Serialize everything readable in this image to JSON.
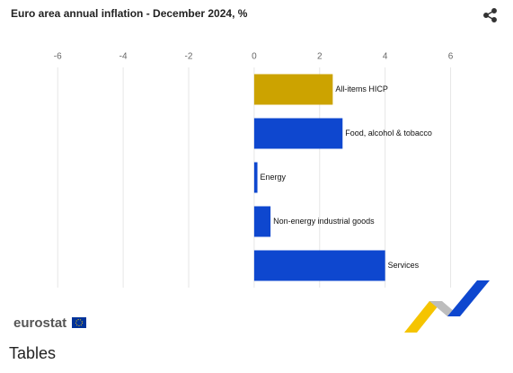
{
  "chart_data": {
    "type": "hbar",
    "title": "Euro area annual inflation - December 2024, %",
    "categories": [
      "All-items HICP",
      "Food, alcohol & tobacco",
      "Energy",
      "Non-energy industrial goods",
      "Services"
    ],
    "values": [
      2.4,
      2.7,
      0.1,
      0.5,
      4.0
    ],
    "colors": [
      "#cca300",
      "#0e47cf",
      "#0e47cf",
      "#0e47cf",
      "#0e47cf"
    ],
    "xlim": [
      -6.5,
      7
    ],
    "xticks": [
      -6,
      -4,
      -2,
      0,
      2,
      4,
      6
    ],
    "grid": true
  },
  "logo": "eurostat",
  "section_heading": "Tables"
}
